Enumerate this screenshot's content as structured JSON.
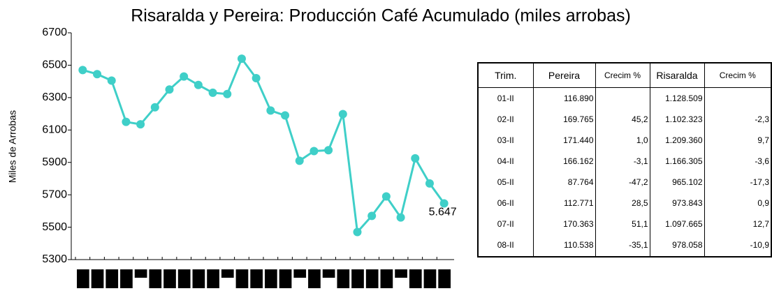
{
  "chart_data": {
    "type": "line",
    "title": "Risaralda y Pereira: Producción Café Acumulado (miles arrobas)",
    "y_label": "Miles de Arrobas",
    "categories": [
      null,
      null,
      null,
      null,
      null,
      null,
      null,
      null,
      null,
      null,
      null,
      null,
      null,
      null,
      null,
      null,
      null,
      null,
      null,
      null,
      null,
      null,
      null,
      null,
      null,
      null
    ],
    "values": [
      6470,
      6445,
      6405,
      6150,
      6135,
      6240,
      6350,
      6430,
      6378,
      6330,
      6322,
      6540,
      6420,
      6220,
      6190,
      5910,
      5970,
      5975,
      6198,
      5470,
      5570,
      5690,
      5560,
      5925,
      5770,
      5647
    ],
    "value_labels": [
      null,
      null,
      null,
      null,
      null,
      null,
      null,
      null,
      null,
      null,
      null,
      null,
      null,
      null,
      null,
      null,
      null,
      null,
      null,
      null,
      null,
      null,
      null,
      null,
      null,
      "5.647"
    ],
    "color": "#3fcfc8",
    "ylim": [
      5300,
      6700
    ],
    "yticks": [
      5300,
      5500,
      5700,
      5900,
      6100,
      6300,
      6500,
      6700
    ]
  },
  "table": {
    "headers": [
      "Trim.",
      "Pereira",
      "Crecim %",
      "Risaralda",
      "Crecim %"
    ],
    "rows": [
      [
        "01-II",
        "116.890",
        "",
        "1.128.509",
        ""
      ],
      [
        "02-II",
        "169.765",
        "45,2",
        "1.102.323",
        "-2,3"
      ],
      [
        "03-II",
        "171.440",
        "1,0",
        "1.209.360",
        "9,7"
      ],
      [
        "04-II",
        "166.162",
        "-3,1",
        "1.166.305",
        "-3,6"
      ],
      [
        "05-II",
        "87.764",
        "-47,2",
        "965.102",
        "-17,3"
      ],
      [
        "06-II",
        "112.771",
        "28,5",
        "973.843",
        "0,9"
      ],
      [
        "07-II",
        "170.363",
        "51,1",
        "1.097.665",
        "12,7"
      ],
      [
        "08-II",
        "110.538",
        "-35,1",
        "978.058",
        "-10,9"
      ]
    ]
  }
}
